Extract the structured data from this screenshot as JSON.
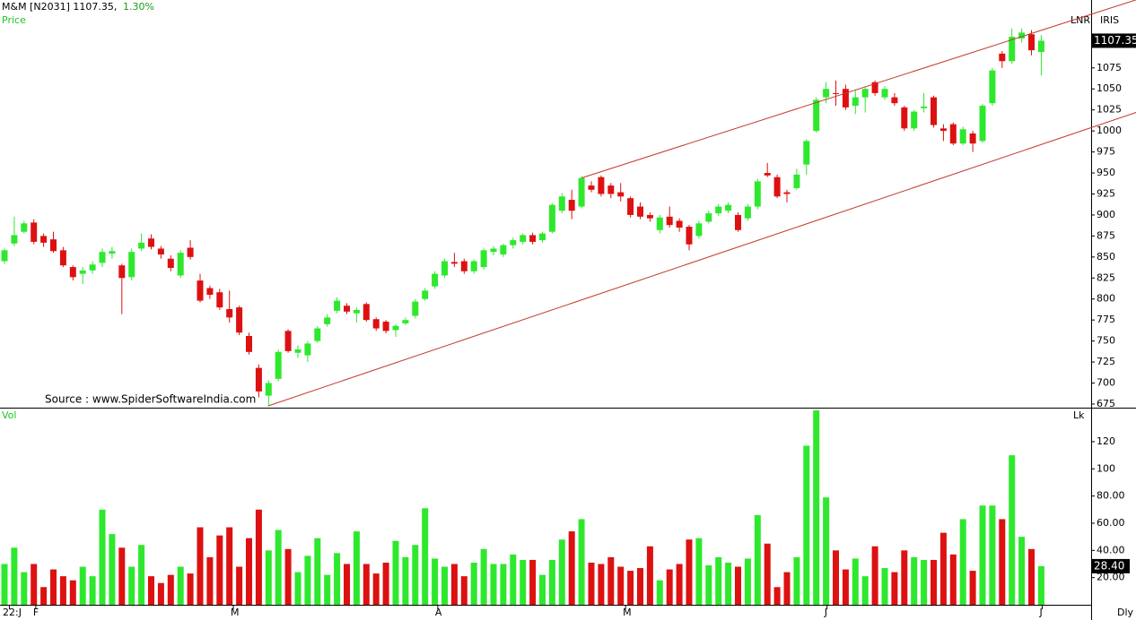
{
  "chart_data": [
    {
      "type": "candlestick",
      "title": "M&M [N2031] 1107.35,",
      "change": "1.30%",
      "panel_label": "Price",
      "right_labels": [
        "LNR",
        "IRIS"
      ],
      "source": "Source : www.SpiderSoftwareIndia.com",
      "up_color": "#2ee82e",
      "down_color": "#dd1111",
      "trend_color": "#c0392b",
      "open": [
        845,
        866,
        880,
        891,
        875,
        871,
        858,
        838,
        830,
        834,
        843,
        854,
        840,
        826,
        860,
        872,
        860,
        848,
        828,
        861,
        822,
        813,
        808,
        788,
        790,
        756,
        718,
        685,
        705,
        762,
        736,
        733,
        750,
        770,
        786,
        792,
        783,
        794,
        776,
        773,
        763,
        771,
        780,
        800,
        815,
        828,
        844,
        845,
        833,
        838,
        856,
        853,
        864,
        868,
        876,
        870,
        880,
        905,
        918,
        910,
        935,
        945,
        935,
        927,
        920,
        910,
        900,
        882,
        898,
        893,
        886,
        875,
        892,
        902,
        905,
        900,
        896,
        910,
        950,
        945,
        927,
        932,
        960,
        1000,
        1040,
        1045,
        1050,
        1030,
        1040,
        1058,
        1040,
        1040,
        1028,
        1003,
        1027,
        1040,
        1003,
        1008,
        985,
        997,
        988,
        1033,
        1092,
        1083,
        1110,
        1115,
        1094
      ],
      "high": [
        860,
        898,
        893,
        895,
        878,
        880,
        862,
        840,
        838,
        845,
        860,
        862,
        842,
        860,
        878,
        877,
        863,
        852,
        858,
        870,
        830,
        816,
        812,
        810,
        792,
        760,
        722,
        703,
        740,
        764,
        745,
        750,
        768,
        782,
        802,
        795,
        790,
        796,
        778,
        775,
        770,
        778,
        800,
        813,
        833,
        848,
        855,
        848,
        847,
        860,
        863,
        866,
        873,
        878,
        879,
        880,
        914,
        926,
        930,
        946,
        940,
        947,
        938,
        938,
        922,
        915,
        903,
        900,
        910,
        896,
        888,
        893,
        905,
        913,
        915,
        903,
        913,
        943,
        962,
        948,
        930,
        955,
        990,
        1040,
        1058,
        1060,
        1055,
        1048,
        1052,
        1060,
        1053,
        1045,
        1030,
        1025,
        1045,
        1042,
        1008,
        1010,
        1005,
        1000,
        1032,
        1075,
        1095,
        1122,
        1122,
        1120,
        1114
      ],
      "low": [
        842,
        863,
        878,
        865,
        862,
        855,
        838,
        822,
        818,
        830,
        838,
        848,
        782,
        822,
        857,
        859,
        848,
        833,
        825,
        847,
        796,
        800,
        787,
        772,
        757,
        734,
        683,
        672,
        702,
        736,
        730,
        725,
        748,
        767,
        783,
        782,
        772,
        773,
        762,
        759,
        755,
        769,
        777,
        798,
        812,
        825,
        838,
        830,
        830,
        835,
        852,
        850,
        860,
        865,
        865,
        867,
        878,
        902,
        895,
        908,
        927,
        922,
        920,
        916,
        897,
        895,
        892,
        878,
        885,
        880,
        858,
        872,
        890,
        899,
        902,
        880,
        893,
        907,
        945,
        920,
        915,
        930,
        948,
        998,
        1033,
        1030,
        1025,
        1020,
        1022,
        1042,
        1037,
        1030,
        1000,
        1000,
        1022,
        1004,
        988,
        983,
        983,
        975,
        986,
        1030,
        1075,
        1080,
        1105,
        1090,
        1066
      ],
      "close": [
        858,
        876,
        890,
        868,
        867,
        857,
        840,
        826,
        834,
        841,
        856,
        857,
        825,
        856,
        867,
        862,
        853,
        837,
        855,
        850,
        798,
        805,
        790,
        778,
        760,
        737,
        690,
        700,
        737,
        738,
        740,
        747,
        765,
        778,
        798,
        785,
        787,
        775,
        765,
        762,
        768,
        775,
        797,
        810,
        830,
        845,
        842,
        833,
        845,
        858,
        860,
        864,
        870,
        876,
        868,
        878,
        912,
        922,
        905,
        944,
        930,
        925,
        925,
        922,
        900,
        898,
        896,
        897,
        888,
        885,
        865,
        890,
        902,
        910,
        912,
        882,
        910,
        940,
        947,
        922,
        925,
        948,
        988,
        1037,
        1050,
        1044,
        1028,
        1040,
        1050,
        1045,
        1050,
        1033,
        1003,
        1023,
        1029,
        1007,
        1000,
        985,
        1002,
        985,
        1030,
        1072,
        1083,
        1112,
        1117,
        1096,
        1107.35
      ],
      "ylim": [
        670.7,
        1155.8
      ],
      "yticks": [
        675,
        700,
        725,
        750,
        775,
        800,
        825,
        850,
        875,
        900,
        925,
        950,
        975,
        1000,
        1025,
        1050,
        1075
      ],
      "trendlines": [
        {
          "x": [
            59,
            115.7
          ],
          "y": [
            944,
            1156
          ]
        },
        {
          "x": [
            27,
            115.7
          ],
          "y": [
            673,
            1022
          ]
        }
      ],
      "xticks": [
        {
          "value": 0.5,
          "label": "22:J"
        },
        {
          "value": 3.2,
          "label": "F"
        },
        {
          "value": 23.4,
          "label": "M"
        },
        {
          "value": 44.3,
          "label": "A"
        },
        {
          "value": 63.5,
          "label": "M"
        },
        {
          "value": 84.1,
          "label": "J"
        },
        {
          "value": 106.1,
          "label": "J"
        }
      ],
      "period": "Dly"
    },
    {
      "type": "bar",
      "panel_label": "Vol",
      "unit": "Lk",
      "last_label": "28.40",
      "values": [
        30,
        42,
        24,
        30,
        13,
        26,
        21,
        18,
        28,
        21,
        70,
        52,
        42,
        28,
        44,
        21,
        16,
        22,
        28,
        23,
        57,
        35,
        51,
        57,
        28,
        49,
        70,
        40,
        55,
        41,
        24,
        36,
        49,
        22,
        38,
        30,
        54,
        30,
        23,
        31,
        47,
        35,
        44,
        71,
        34,
        28,
        30,
        21,
        31,
        41,
        30,
        30,
        37,
        33,
        33,
        22,
        33,
        48,
        54,
        63,
        31,
        30,
        35,
        28,
        25,
        27,
        43,
        18,
        26,
        30,
        48,
        49,
        29,
        35,
        31,
        28,
        34,
        66,
        45,
        13,
        24,
        35,
        117,
        143,
        79,
        40,
        26,
        34,
        21,
        43,
        27,
        24,
        40,
        35,
        33,
        33,
        53,
        37,
        63,
        25,
        73,
        73,
        63,
        110,
        50,
        41,
        28.4
      ],
      "ylim": [
        0,
        143.7
      ],
      "yticks": [
        {
          "value": 20,
          "label": "20.00"
        },
        {
          "value": 40,
          "label": "40.00"
        },
        {
          "value": 60,
          "label": "60.00"
        },
        {
          "value": 80,
          "label": "80.00"
        },
        100,
        120
      ]
    }
  ]
}
